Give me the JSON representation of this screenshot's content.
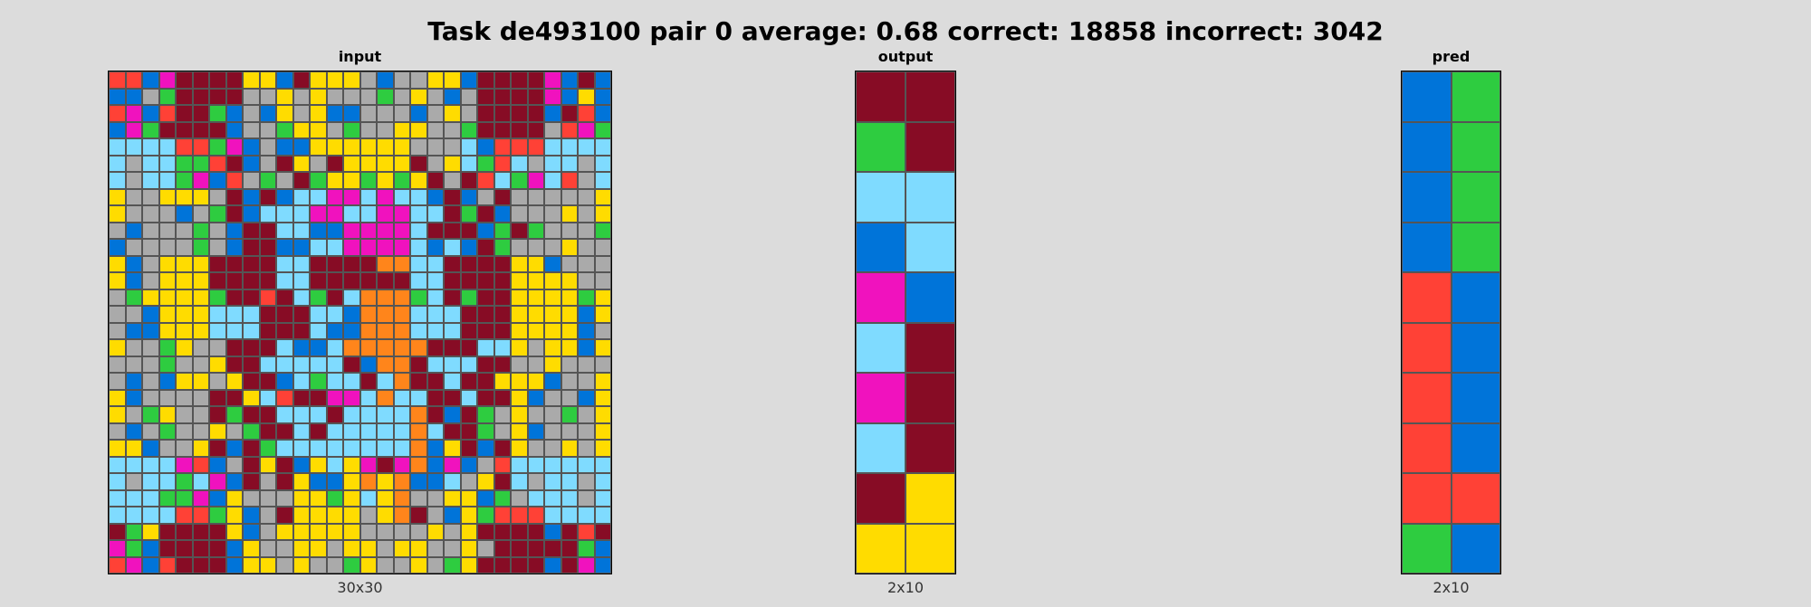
{
  "title": "Task de493100 pair 0 average: 0.68 correct: 18858 incorrect: 3042",
  "palette": {
    "0": "#000000",
    "1": "#0074d9",
    "2": "#ff4136",
    "3": "#2ecc40",
    "4": "#ffdc00",
    "5": "#aaaaaa",
    "6": "#f012be",
    "7": "#ff851b",
    "8": "#7fdbff",
    "9": "#870c25"
  },
  "panels": [
    {
      "label": "input",
      "dims": "30x30",
      "rows": [
        "221699994419444515544199996191",
        "115399995545455535451599996141",
        "261299315145411555154599991921",
        "163999915534453554455399995263",
        "888822361511444444555812228888",
        "858833291594594444954832858858",
        "858836125359344343495928368258",
        "455444591918866868819159555554",
        "455515391888668866889391555454",
        "515553519988116666899913935553",
        "155553519911886666818193555455",
        "415444999988999977889999441555",
        "415444999988999999889999444455",
        "534444399298398777389399444434",
        "551444888999881777888999444414",
        "511444888999811777888999444415",
        "455345599981187777799988454414",
        "555355499888889177988899554555",
        "515144549918388987998994441554",
        "415555994829966878899899415514",
        "453455939988898888791935455354",
        "515355453998988888789935415554",
        "441554919388888888714919455454",
        "888862159491484696716152888888",
        "858838619594114747118549858858",
        "888336145554434847554413588858",
        "888822341594444547951432228888",
        "934999941544444555545499991929",
        "631999914554454454455459999931",
        "261299914454553455453499991961"
      ]
    },
    {
      "label": "output",
      "dims": "2x10",
      "rows": [
        "99",
        "39",
        "88",
        "18",
        "61",
        "89",
        "69",
        "89",
        "94",
        "44"
      ]
    },
    {
      "label": "pred",
      "dims": "2x10",
      "rows": [
        "13",
        "13",
        "13",
        "13",
        "21",
        "21",
        "21",
        "21",
        "22",
        "31"
      ]
    }
  ]
}
